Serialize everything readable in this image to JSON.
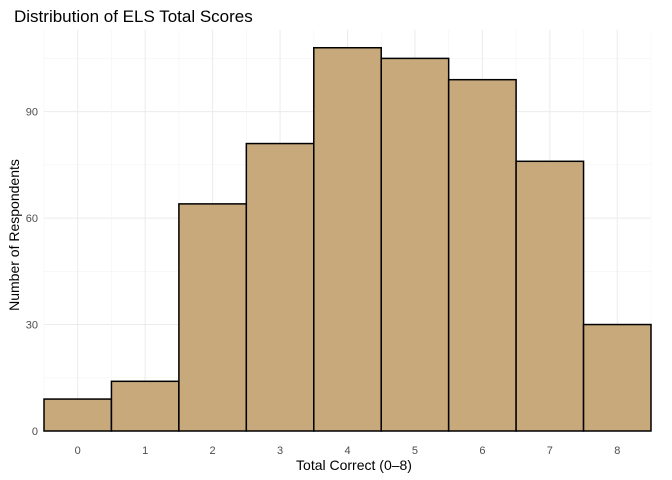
{
  "chart_data": {
    "type": "bar",
    "title": "Distribution of ELS Total Scores",
    "xlabel": "Total Correct (0–8)",
    "ylabel": "Number of Respondents",
    "categories": [
      "0",
      "1",
      "2",
      "3",
      "4",
      "5",
      "6",
      "7",
      "8"
    ],
    "values": [
      9,
      14,
      64,
      81,
      108,
      105,
      99,
      76,
      30
    ],
    "x_ticks": [
      "0",
      "1",
      "2",
      "3",
      "4",
      "5",
      "6",
      "7",
      "8"
    ],
    "y_ticks": [
      "0",
      "30",
      "60",
      "90"
    ],
    "xlim": [
      -0.5,
      8.5
    ],
    "ylim": [
      0,
      113
    ],
    "grid": true,
    "bar_fill": "#c8a97c",
    "bar_outline": "#000000"
  }
}
